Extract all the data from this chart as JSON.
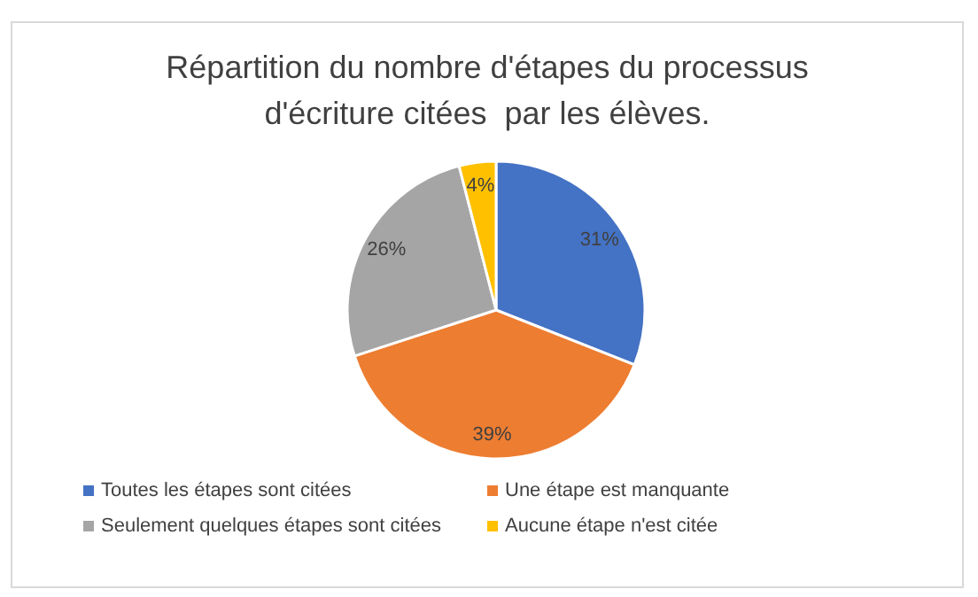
{
  "chart_data": {
    "type": "pie",
    "title": "Répartition du nombre d'étapes du processus d'écriture citées  par les élèves.",
    "categories": [
      "Toutes les étapes sont citées",
      "Une étape est manquante",
      "Seulement quelques étapes sont citées",
      "Aucune étape n'est citée"
    ],
    "values": [
      31,
      39,
      26,
      4
    ],
    "colors": [
      "#4472c4",
      "#ed7d31",
      "#a5a5a5",
      "#ffc000"
    ],
    "value_labels": [
      "31%",
      "39%",
      "26%",
      "4%"
    ],
    "legend": "bottom"
  }
}
